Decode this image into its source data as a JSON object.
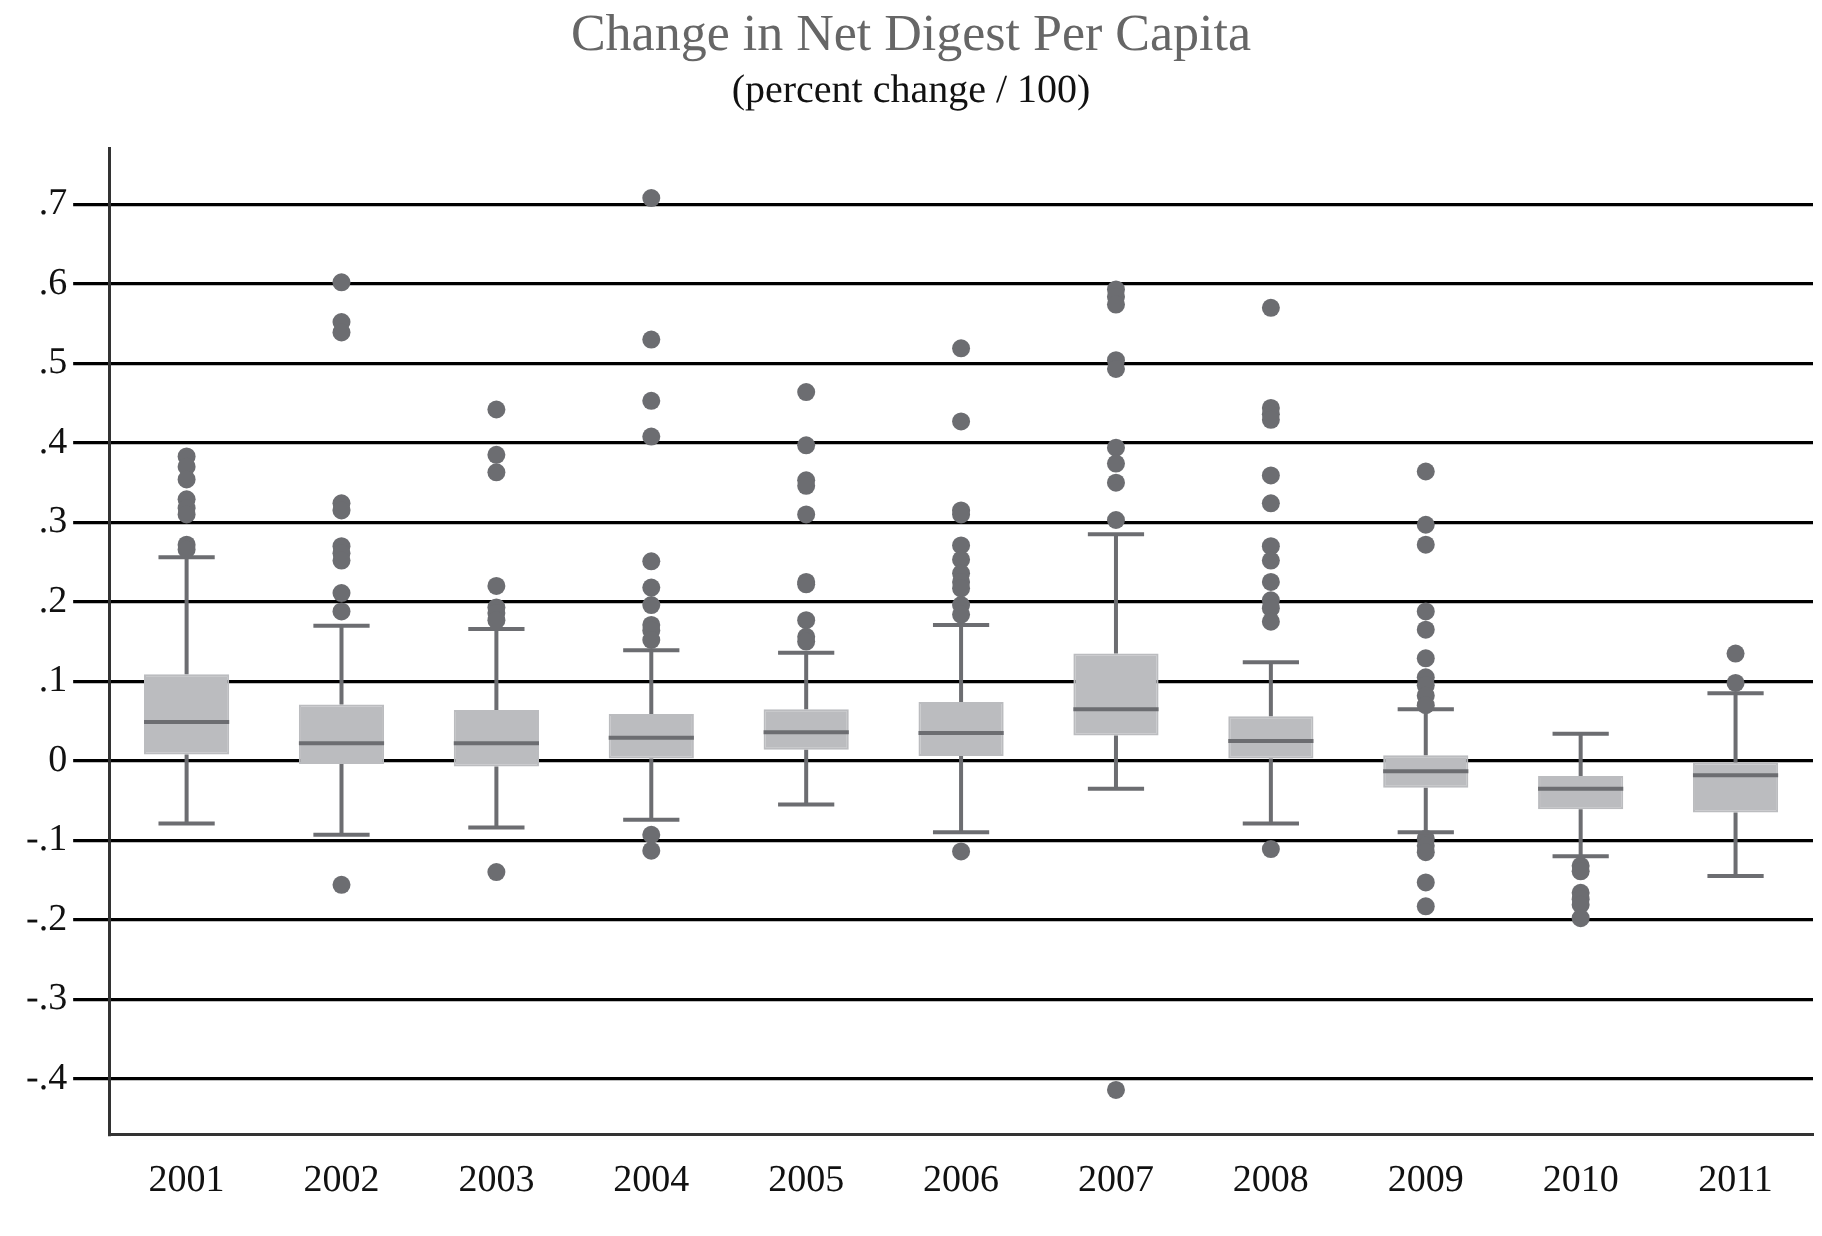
{
  "chart_data": {
    "type": "box",
    "title": "Change in Net Digest Per Capita",
    "subtitle": "(percent change / 100)",
    "categories": [
      "2001",
      "2002",
      "2003",
      "2004",
      "2005",
      "2006",
      "2007",
      "2008",
      "2009",
      "2010",
      "2011"
    ],
    "ylim": [
      -0.47,
      0.77
    ],
    "yticks": [
      {
        "value": -0.4,
        "label": "-.4"
      },
      {
        "value": -0.3,
        "label": "-.3"
      },
      {
        "value": -0.2,
        "label": "-.2"
      },
      {
        "value": -0.1,
        "label": "-.1"
      },
      0,
      {
        "value": 0.1,
        "label": ".1"
      },
      {
        "value": 0.2,
        "label": ".2"
      },
      {
        "value": 0.3,
        "label": ".3"
      },
      {
        "value": 0.4,
        "label": ".4"
      },
      {
        "value": 0.5,
        "label": ".5"
      },
      {
        "value": 0.6,
        "label": ".6"
      },
      {
        "value": 0.7,
        "label": ".7"
      }
    ],
    "grid": "y",
    "legend": false,
    "series": [
      {
        "color": "#bbbcbf",
        "boxes": [
          {
            "low": -0.079,
            "q1": 0.008,
            "median": 0.049,
            "q3": 0.109,
            "high": 0.256,
            "outliers": [
              0.383,
              0.37,
              0.354,
              0.329,
              0.318,
              0.31,
              0.272,
              0.266
            ]
          },
          {
            "low": -0.093,
            "q1": -0.004,
            "median": 0.022,
            "q3": 0.071,
            "high": 0.17,
            "outliers": [
              0.602,
              0.552,
              0.539,
              0.324,
              0.315,
              0.27,
              0.261,
              0.252,
              0.211,
              0.188,
              -0.156
            ]
          },
          {
            "low": -0.084,
            "q1": -0.007,
            "median": 0.022,
            "q3": 0.064,
            "high": 0.166,
            "outliers": [
              0.442,
              0.385,
              0.363,
              0.22,
              0.193,
              0.186,
              0.177,
              -0.14
            ]
          },
          {
            "low": -0.074,
            "q1": 0.003,
            "median": 0.029,
            "q3": 0.059,
            "high": 0.139,
            "outliers": [
              0.708,
              0.53,
              0.453,
              0.408,
              0.251,
              0.218,
              0.196,
              0.171,
              0.164,
              0.152,
              -0.093,
              -0.113
            ]
          },
          {
            "low": -0.055,
            "q1": 0.014,
            "median": 0.036,
            "q3": 0.065,
            "high": 0.136,
            "outliers": [
              0.464,
              0.397,
              0.353,
              0.346,
              0.31,
              0.225,
              0.222,
              0.177,
              0.156,
              0.15
            ]
          },
          {
            "low": -0.09,
            "q1": 0.006,
            "median": 0.035,
            "q3": 0.074,
            "high": 0.171,
            "outliers": [
              0.519,
              0.427,
              0.315,
              0.31,
              0.271,
              0.253,
              0.236,
              0.225,
              0.217,
              0.196,
              0.184,
              -0.114
            ]
          },
          {
            "low": -0.035,
            "q1": 0.032,
            "median": 0.065,
            "q3": 0.135,
            "high": 0.285,
            "outliers": [
              0.593,
              0.584,
              0.574,
              0.504,
              0.493,
              0.394,
              0.374,
              0.35,
              0.303,
              -0.414
            ]
          },
          {
            "low": -0.079,
            "q1": 0.003,
            "median": 0.025,
            "q3": 0.056,
            "high": 0.124,
            "outliers": [
              0.57,
              0.444,
              0.436,
              0.429,
              0.359,
              0.324,
              0.27,
              0.252,
              0.225,
              0.202,
              0.192,
              0.175,
              -0.111
            ]
          },
          {
            "low": -0.09,
            "q1": -0.034,
            "median": -0.013,
            "q3": 0.007,
            "high": 0.065,
            "outliers": [
              0.364,
              0.297,
              0.272,
              0.188,
              0.165,
              0.129,
              0.105,
              0.095,
              0.082,
              0.07,
              -0.098,
              -0.107,
              -0.115,
              -0.153,
              -0.183
            ]
          },
          {
            "low": -0.12,
            "q1": -0.061,
            "median": -0.035,
            "q3": -0.019,
            "high": 0.034,
            "outliers": [
              -0.132,
              -0.139,
              -0.166,
              -0.174,
              -0.181,
              -0.198
            ]
          },
          {
            "low": -0.145,
            "q1": -0.065,
            "median": -0.018,
            "q3": -0.002,
            "high": 0.085,
            "outliers": [
              0.135,
              0.098
            ]
          }
        ]
      }
    ]
  }
}
